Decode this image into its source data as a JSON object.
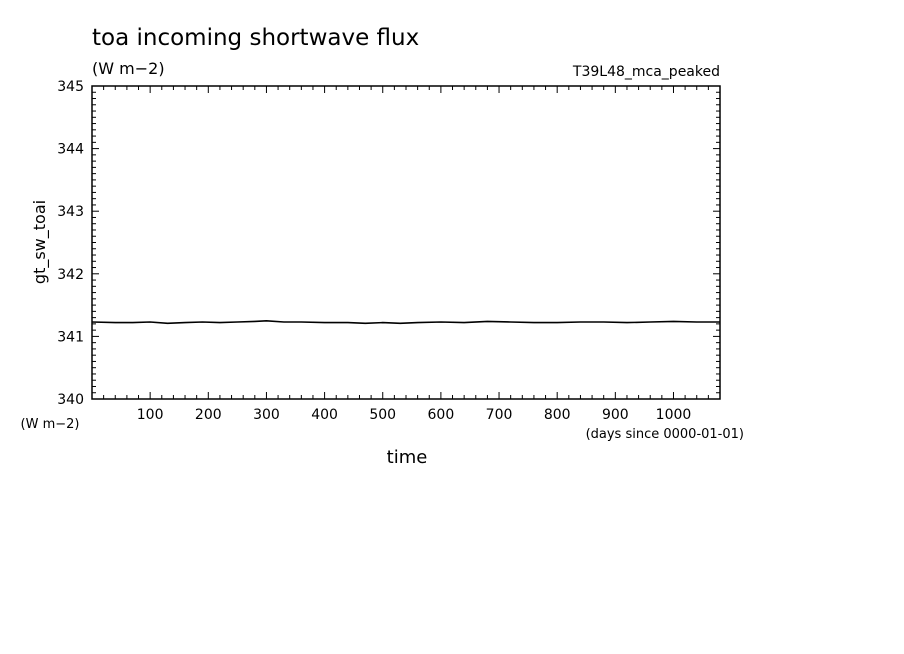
{
  "header": {
    "title": "toa incoming shortwave flux",
    "units": "(W m−2)",
    "experiment": "T39L48_mca_peaked"
  },
  "chart_data": {
    "type": "line",
    "title": "toa incoming shortwave flux",
    "subtitle": "(W m−2)",
    "annotation": "T39L48_mca_peaked",
    "ylabel": "gt_sw_toai",
    "ylabel_units": "(W m−2)",
    "xlabel": "time",
    "xlabel_units": "(days since 0000-01-01)",
    "xlim": [
      0,
      1080
    ],
    "ylim": [
      340,
      345
    ],
    "x_ticks": [
      100,
      200,
      300,
      400,
      500,
      600,
      700,
      800,
      900,
      1000
    ],
    "x_tick_labels": [
      "100",
      "200",
      "300",
      "400",
      "500",
      "600",
      "700",
      "800",
      "900",
      "1000"
    ],
    "y_ticks": [
      340,
      341,
      342,
      343,
      344,
      345
    ],
    "y_tick_labels": [
      "340",
      "341",
      "342",
      "343",
      "344",
      "345"
    ],
    "grid": false,
    "series": [
      {
        "x": [
          0,
          40,
          70,
          100,
          130,
          160,
          190,
          220,
          250,
          280,
          300,
          330,
          360,
          400,
          440,
          470,
          500,
          530,
          560,
          600,
          640,
          680,
          720,
          760,
          800,
          840,
          880,
          920,
          960,
          1000,
          1040,
          1080
        ],
        "values": [
          341.23,
          341.22,
          341.22,
          341.23,
          341.21,
          341.22,
          341.23,
          341.22,
          341.23,
          341.24,
          341.25,
          341.23,
          341.23,
          341.22,
          341.22,
          341.21,
          341.22,
          341.21,
          341.22,
          341.23,
          341.22,
          341.24,
          341.23,
          341.22,
          341.22,
          341.23,
          341.23,
          341.22,
          341.23,
          341.24,
          341.23,
          341.23
        ]
      }
    ]
  }
}
